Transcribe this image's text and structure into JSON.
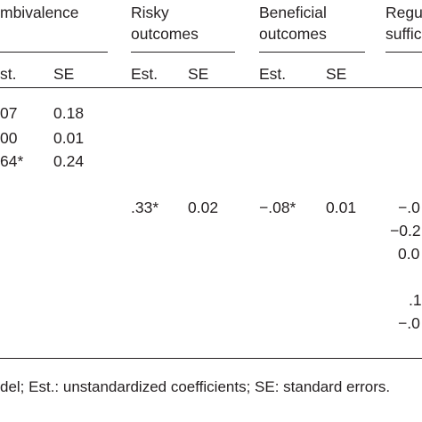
{
  "table": {
    "headers": {
      "ambivalence": "mbivalence",
      "risky_line1": "Risky",
      "risky_line2": "outcomes",
      "beneficial_line1": "Beneficial",
      "beneficial_line2": "outcomes",
      "regulatory_line1": "Regu",
      "regulatory_line2": "suffic"
    },
    "subheaders": {
      "ambivalence_est": "st.",
      "ambivalence_se": "SE",
      "risky_est": "Est.",
      "risky_se": "SE",
      "beneficial_est": "Est.",
      "beneficial_se": "SE"
    },
    "ambivalence_rows": [
      {
        "est": "07",
        "se": "0.18"
      },
      {
        "est": "00",
        "se": "0.01"
      },
      {
        "est": "64*",
        "se": "0.24"
      }
    ],
    "row4": {
      "risky_est": ".33*",
      "risky_se": "0.02",
      "beneficial_est": "−.08*",
      "beneficial_se": "0.01",
      "regulatory": "−.0"
    },
    "regulatory_values": [
      "−0.2",
      "0.0",
      ".1",
      "−.0"
    ]
  },
  "footnote": "del; Est.: unstandardized coefficients; SE: standard errors."
}
